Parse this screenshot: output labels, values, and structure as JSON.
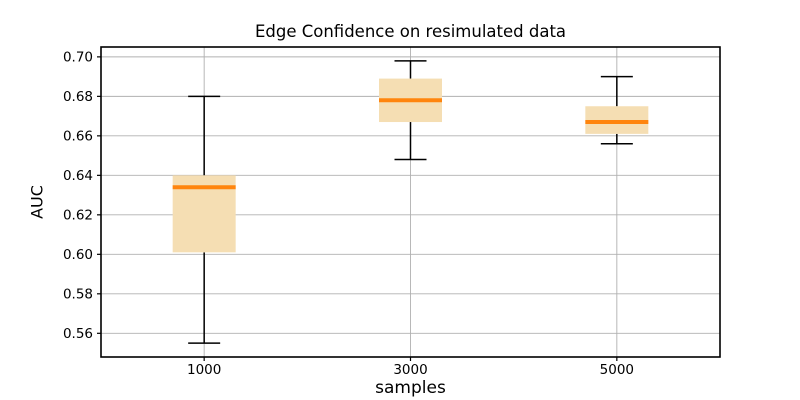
{
  "chart_data": {
    "type": "box",
    "title": "Edge Confidence on resimulated data",
    "xlabel": "samples",
    "ylabel": "AUC",
    "categories": [
      "1000",
      "3000",
      "5000"
    ],
    "boxes": [
      {
        "label": "1000",
        "whislo": 0.555,
        "q1": 0.601,
        "med": 0.634,
        "q3": 0.64,
        "whishi": 0.68
      },
      {
        "label": "3000",
        "whislo": 0.648,
        "q1": 0.667,
        "med": 0.678,
        "q3": 0.689,
        "whishi": 0.698
      },
      {
        "label": "5000",
        "whislo": 0.656,
        "q1": 0.661,
        "med": 0.667,
        "q3": 0.675,
        "whishi": 0.69
      }
    ],
    "ylim": [
      0.548,
      0.705
    ],
    "yticks": [
      0.56,
      0.58,
      0.6,
      0.62,
      0.64,
      0.66,
      0.68,
      0.7
    ],
    "ytick_labels": [
      "0.56",
      "0.58",
      "0.60",
      "0.62",
      "0.64",
      "0.66",
      "0.68",
      "0.70"
    ],
    "grid": true,
    "legend": null,
    "colors": {
      "box_fill": "#f5deb3",
      "median": "#ff850e",
      "whisker": "#000000",
      "grid": "#b0b0b0",
      "axis": "#000000",
      "text": "#000000",
      "background": "#ffffff"
    }
  }
}
